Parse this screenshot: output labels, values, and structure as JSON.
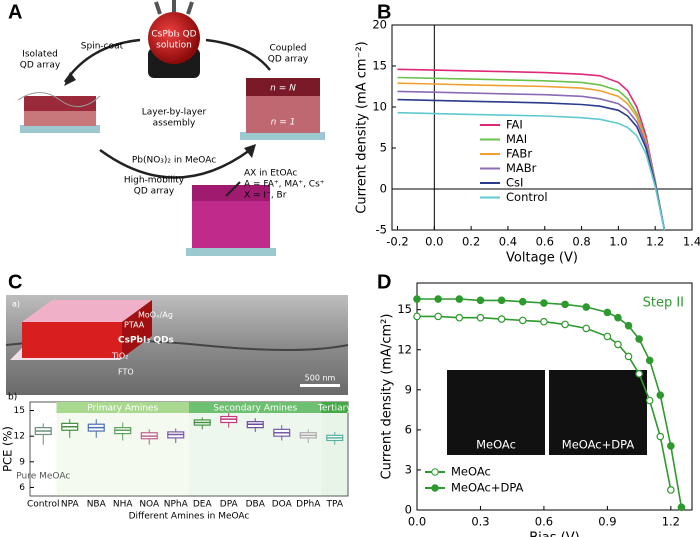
{
  "panel_labels": [
    "A",
    "B",
    "C",
    "D"
  ],
  "diagram_a": {
    "flask_label": [
      "CsPbI₃ QD",
      "solution"
    ],
    "spin_coat": "Spin-coat",
    "isolated": [
      "Isolated",
      "QD array"
    ],
    "coupled": [
      "Coupled",
      "QD array"
    ],
    "center": [
      "Layer-by-layer",
      "assembly"
    ],
    "bottom_arrow": "Pb(NO₃)₂ in MeOAc",
    "ax_lines": [
      "AX in EtOAc",
      "A = FA⁺, MA⁺, Cs⁺",
      "X = I⁻, Br"
    ],
    "high_mobility": [
      "High-mobility",
      "QD array"
    ],
    "n_top": "n = N",
    "n_bottom": "n = 1"
  },
  "sem": {
    "sublabel": "a)",
    "layers": [
      "MoOₓ/Ag",
      "PTAA",
      "CsPbI₃ QDs",
      "TiO₂",
      "FTO"
    ],
    "scale": "500 nm"
  },
  "chart_data": [
    {
      "type": "line",
      "xlabel": "Voltage (V)",
      "ylabel": "Current density (mA cm⁻²)",
      "x": [
        -0.2,
        0,
        0.2,
        0.4,
        0.6,
        0.8,
        0.9,
        1.0,
        1.05,
        1.1,
        1.15,
        1.2,
        1.25
      ],
      "series": [
        {
          "name": "FAI",
          "color": "#e0287a",
          "values": [
            14.6,
            14.5,
            14.4,
            14.3,
            14.2,
            14.0,
            13.8,
            13.0,
            12.0,
            10.0,
            6.5,
            1.0,
            -5
          ]
        },
        {
          "name": "MAI",
          "color": "#6cc24a",
          "values": [
            13.6,
            13.5,
            13.4,
            13.3,
            13.2,
            13.0,
            12.7,
            12.0,
            11.0,
            9.2,
            6.0,
            1.0,
            -5
          ]
        },
        {
          "name": "FABr",
          "color": "#f0a030",
          "values": [
            12.9,
            12.8,
            12.7,
            12.6,
            12.5,
            12.3,
            12.0,
            11.3,
            10.4,
            8.8,
            5.8,
            0.8,
            -5
          ]
        },
        {
          "name": "MABr",
          "color": "#8b6bb5",
          "values": [
            11.9,
            11.8,
            11.7,
            11.6,
            11.5,
            11.3,
            11.0,
            10.4,
            9.6,
            8.2,
            5.5,
            0.8,
            -5
          ]
        },
        {
          "name": "CsI",
          "color": "#2b3a8c",
          "values": [
            10.9,
            10.8,
            10.7,
            10.6,
            10.5,
            10.3,
            10.1,
            9.6,
            8.9,
            7.6,
            5.0,
            0.5,
            -5
          ]
        },
        {
          "name": "Control",
          "color": "#5fc9d0",
          "values": [
            9.3,
            9.2,
            9.1,
            9.0,
            8.9,
            8.7,
            8.5,
            8.0,
            7.5,
            6.5,
            4.3,
            0.3,
            -5
          ]
        }
      ],
      "xlim": [
        -0.23,
        1.4
      ],
      "ylim": [
        -5,
        20
      ],
      "xticks": [
        -0.2,
        {
          "value": 0,
          "label": "0.0"
        },
        0.2,
        0.4,
        0.6,
        0.8,
        {
          "value": 1,
          "label": "1.0"
        },
        1.2,
        1.4
      ],
      "yticks": [
        -5,
        0,
        5,
        10,
        15,
        20
      ],
      "zero_lines": true,
      "legend": "lower center"
    },
    {
      "type": "line",
      "xlabel": "Bias (V)",
      "ylabel": "Current density (mA/cm²)",
      "x": [
        0,
        0.1,
        0.2,
        0.3,
        0.4,
        0.5,
        0.6,
        0.7,
        0.8,
        0.9,
        0.95,
        1.0,
        1.05,
        1.1,
        1.15,
        1.2,
        1.25
      ],
      "series": [
        {
          "name": "MeOAc",
          "color": "#2e9a2e",
          "marker": "open",
          "values": [
            14.5,
            14.5,
            14.4,
            14.4,
            14.3,
            14.2,
            14.1,
            13.9,
            13.6,
            13.0,
            12.4,
            11.5,
            10.2,
            8.2,
            5.5,
            1.5,
            null
          ]
        },
        {
          "name": "MeOAc+DPA",
          "color": "#2e9a2e",
          "marker": "filled",
          "values": [
            15.8,
            15.8,
            15.8,
            15.7,
            15.7,
            15.6,
            15.5,
            15.4,
            15.2,
            14.8,
            14.4,
            13.8,
            12.8,
            11.2,
            8.6,
            4.8,
            0.2
          ]
        }
      ],
      "xlim": [
        0,
        1.3
      ],
      "ylim": [
        0,
        17
      ],
      "xticks": [
        {
          "value": 0,
          "label": "0.0"
        },
        0.3,
        0.6,
        0.9,
        1.2
      ],
      "yticks": [
        0,
        3,
        6,
        9,
        12,
        15
      ],
      "legend": "lower left",
      "annotation": "Step II",
      "insets": [
        "MeOAc",
        "MeOAc+DPA"
      ]
    },
    {
      "type": "box",
      "sublabel": "b)",
      "xlabel": "Different Amines in MeOAc",
      "ylabel": "PCE (%)",
      "note": "Pure MeOAc",
      "categories": [
        "Control",
        "NPA",
        "NBA",
        "NHA",
        "NOA",
        "NPhA",
        "DEA",
        "DPA",
        "DBA",
        "DOA",
        "DPhA",
        "TPA"
      ],
      "boxes": [
        {
          "min": 11.0,
          "q1": 12.2,
          "median": 12.6,
          "q3": 13.0,
          "max": 13.5
        },
        {
          "min": 11.8,
          "q1": 12.7,
          "median": 13.1,
          "q3": 13.5,
          "max": 14.0
        },
        {
          "min": 11.8,
          "q1": 12.6,
          "median": 13.0,
          "q3": 13.4,
          "max": 14.0
        },
        {
          "min": 11.5,
          "q1": 12.3,
          "median": 12.7,
          "q3": 13.0,
          "max": 13.6
        },
        {
          "min": 11.0,
          "q1": 11.7,
          "median": 12.0,
          "q3": 12.4,
          "max": 12.8
        },
        {
          "min": 11.2,
          "q1": 11.8,
          "median": 12.2,
          "q3": 12.5,
          "max": 12.9
        },
        {
          "min": 12.8,
          "q1": 13.3,
          "median": 13.6,
          "q3": 13.9,
          "max": 14.2
        },
        {
          "min": 13.0,
          "q1": 13.6,
          "median": 14.0,
          "q3": 14.3,
          "max": 14.7
        },
        {
          "min": 12.5,
          "q1": 13.0,
          "median": 13.4,
          "q3": 13.7,
          "max": 14.1
        },
        {
          "min": 11.5,
          "q1": 12.0,
          "median": 12.4,
          "q3": 12.8,
          "max": 13.3
        },
        {
          "min": 11.2,
          "q1": 11.8,
          "median": 12.1,
          "q3": 12.4,
          "max": 12.8
        },
        {
          "min": 11.0,
          "q1": 11.5,
          "median": 11.8,
          "q3": 12.1,
          "max": 12.5
        }
      ],
      "colors": [
        "#6a8f7a",
        "#3f8f3f",
        "#4a6fb0",
        "#5aa05a",
        "#c0608a",
        "#7a5aa8",
        "#3f8f3f",
        "#c03a7a",
        "#6a4a9a",
        "#7a5aa8",
        "#a8a8a8",
        "#5ab0a0"
      ],
      "groups": [
        {
          "name": "Primary Amines",
          "color": "#a9d98f",
          "members": [
            "NPA",
            "NBA",
            "NHA",
            "NOA",
            "NPhA"
          ]
        },
        {
          "name": "Secondary Amines",
          "color": "#6cc070",
          "members": [
            "DEA",
            "DPA",
            "DBA",
            "DOA",
            "DPhA"
          ]
        },
        {
          "name": "Tertiary",
          "color": "#44a844",
          "members": [
            "TPA"
          ]
        }
      ],
      "ylim": [
        5,
        16
      ],
      "yticks": [
        6,
        9,
        12,
        15
      ]
    }
  ]
}
